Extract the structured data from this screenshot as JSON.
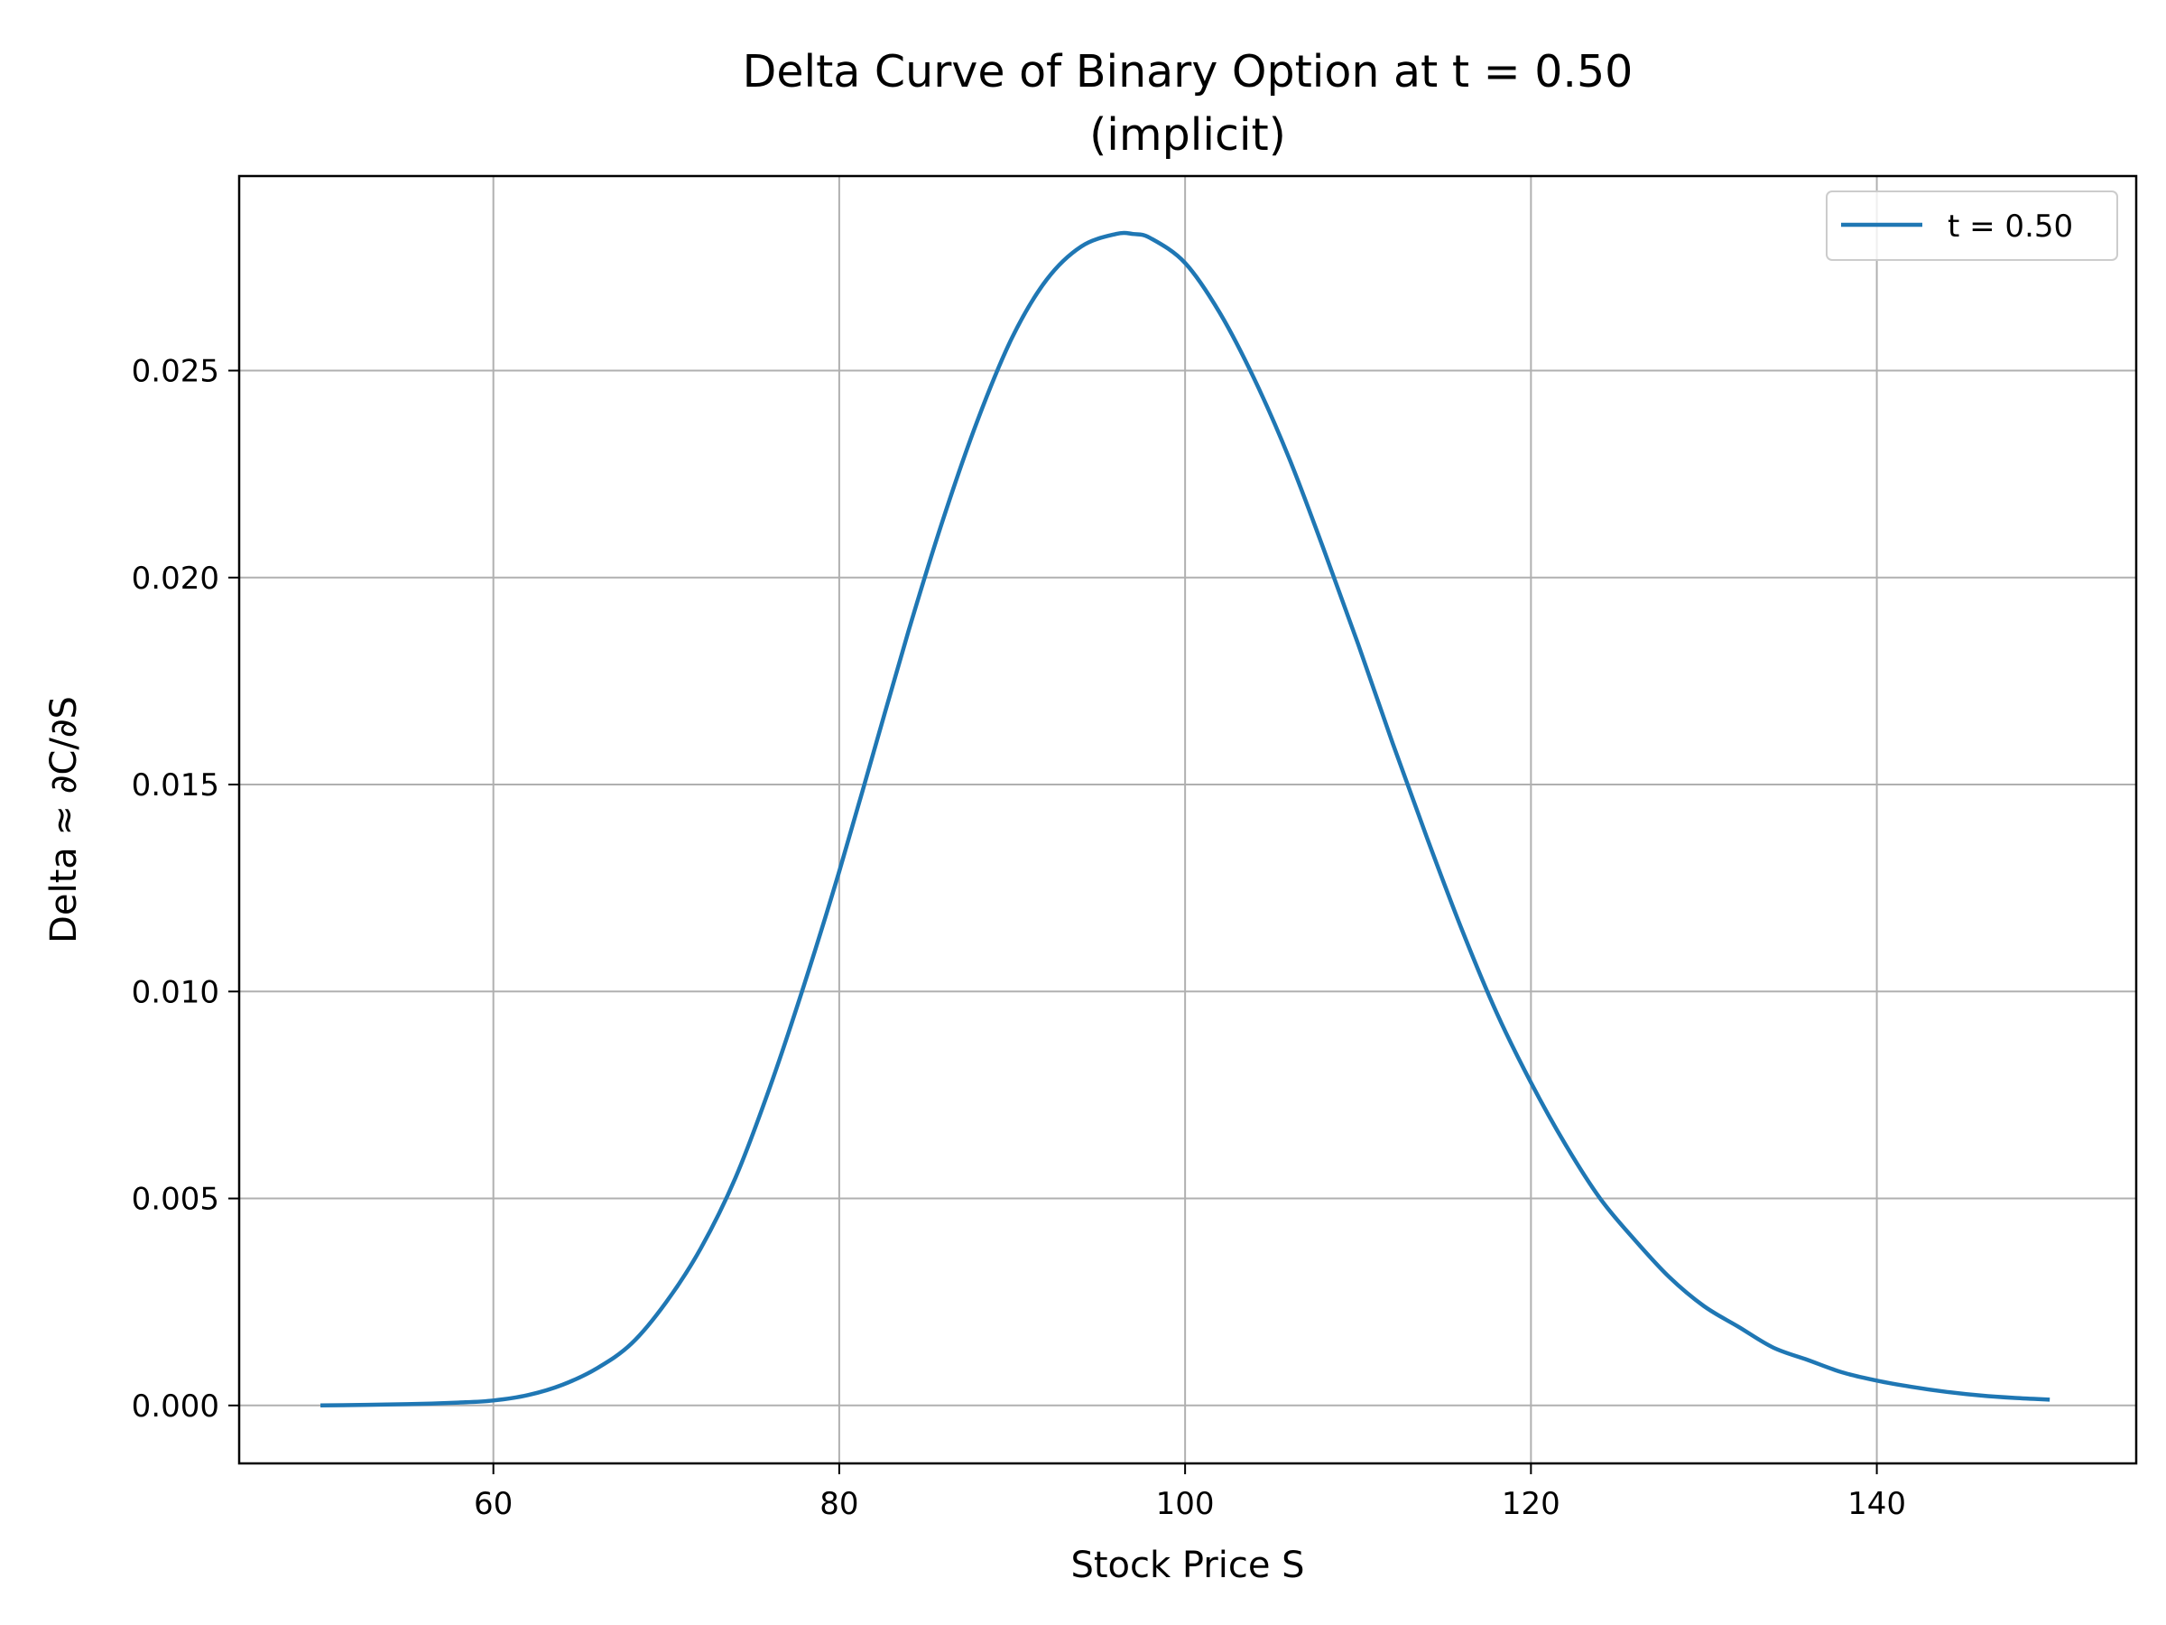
{
  "chart_data": {
    "type": "line",
    "title_lines": [
      "Delta Curve of Binary Option at t = 0.50",
      "(implicit)"
    ],
    "xlabel": "Stock Price S",
    "ylabel": "Delta ≈ ∂C/∂S",
    "xlim": [
      45.3,
      155
    ],
    "ylim": [
      -0.0014,
      0.0297
    ],
    "x_ticks": [
      60,
      80,
      100,
      120,
      140
    ],
    "x_tick_labels": [
      "60",
      "80",
      "100",
      "120",
      "140"
    ],
    "y_ticks": [
      0.0,
      0.005,
      0.01,
      0.015,
      0.02,
      0.025
    ],
    "y_tick_labels": [
      "0.000",
      "0.005",
      "0.010",
      "0.015",
      "0.020",
      "0.025"
    ],
    "grid": true,
    "legend_position": "top-right",
    "series": [
      {
        "name": "t = 0.50",
        "color": "#1f77b4",
        "x": [
          50,
          55,
          58,
          60,
          62,
          64,
          66,
          68,
          70,
          72,
          74,
          76,
          78,
          80,
          82,
          84,
          86,
          88,
          90,
          92,
          94,
          96,
          97,
          98,
          100,
          102,
          104,
          106,
          108,
          110,
          112,
          114,
          116,
          118,
          120,
          122,
          124,
          126,
          128,
          130,
          132,
          134,
          136,
          138,
          140,
          142,
          144,
          146,
          148,
          150
        ],
        "y": [
          0.0,
          3e-05,
          7e-05,
          0.00012,
          0.00025,
          0.0005,
          0.0009,
          0.0015,
          0.0025,
          0.0038,
          0.0055,
          0.0077,
          0.0102,
          0.0129,
          0.0158,
          0.0187,
          0.0214,
          0.0238,
          0.0258,
          0.0272,
          0.028,
          0.0283,
          0.0283,
          0.0282,
          0.0276,
          0.0264,
          0.0248,
          0.0229,
          0.0207,
          0.0184,
          0.016,
          0.0137,
          0.0115,
          0.0095,
          0.0078,
          0.0063,
          0.005,
          0.004,
          0.0031,
          0.0024,
          0.0019,
          0.0014,
          0.0011,
          0.0008,
          0.0006,
          0.00045,
          0.00033,
          0.00024,
          0.00018,
          0.00014
        ]
      }
    ]
  }
}
